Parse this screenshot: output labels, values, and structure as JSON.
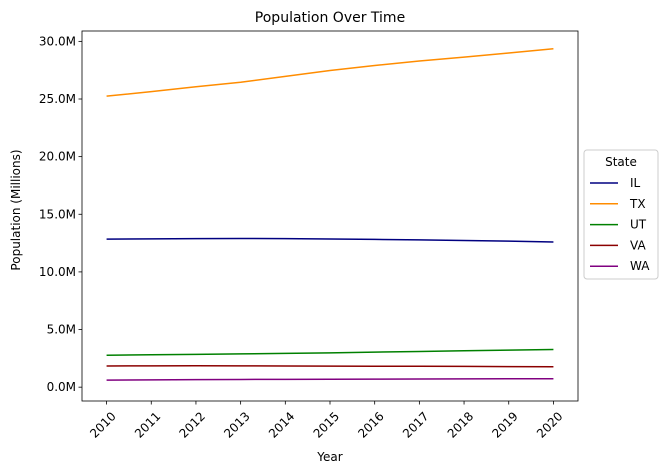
{
  "chart_data": {
    "type": "line",
    "title": "Population Over Time",
    "xlabel": "Year",
    "ylabel": "Population (Millions)",
    "x": [
      2010,
      2011,
      2012,
      2013,
      2014,
      2015,
      2016,
      2017,
      2018,
      2019,
      2020
    ],
    "x_tick_labels": [
      "2010",
      "2011",
      "2012",
      "2013",
      "2014",
      "2015",
      "2016",
      "2017",
      "2018",
      "2019",
      "2020"
    ],
    "ylim": [
      -1.2,
      30.9
    ],
    "y_ticks": [
      0,
      5,
      10,
      15,
      20,
      25,
      30
    ],
    "y_tick_labels": [
      "0.0M",
      "5.0M",
      "10.0M",
      "15.0M",
      "20.0M",
      "25.0M",
      "30.0M"
    ],
    "grid": false,
    "legend": {
      "title": "State",
      "placement": "center-right outside"
    },
    "series": [
      {
        "name": "IL",
        "color": "#000080",
        "values": [
          12.84,
          12.87,
          12.89,
          12.9,
          12.89,
          12.86,
          12.82,
          12.78,
          12.72,
          12.67,
          12.59
        ]
      },
      {
        "name": "TX",
        "color": "#ff8c00",
        "values": [
          25.25,
          25.64,
          26.06,
          26.45,
          26.96,
          27.47,
          27.91,
          28.3,
          28.63,
          28.99,
          29.36
        ]
      },
      {
        "name": "UT",
        "color": "#008000",
        "values": [
          2.77,
          2.81,
          2.85,
          2.89,
          2.93,
          2.98,
          3.04,
          3.1,
          3.16,
          3.21,
          3.27
        ]
      },
      {
        "name": "VA",
        "color": "#8b0000",
        "values": [
          1.84,
          1.85,
          1.86,
          1.85,
          1.84,
          1.83,
          1.82,
          1.81,
          1.8,
          1.78,
          1.77
        ]
      },
      {
        "name": "WA",
        "color": "#800080",
        "values": [
          0.61,
          0.63,
          0.65,
          0.67,
          0.68,
          0.69,
          0.7,
          0.71,
          0.72,
          0.73,
          0.73
        ]
      }
    ]
  }
}
